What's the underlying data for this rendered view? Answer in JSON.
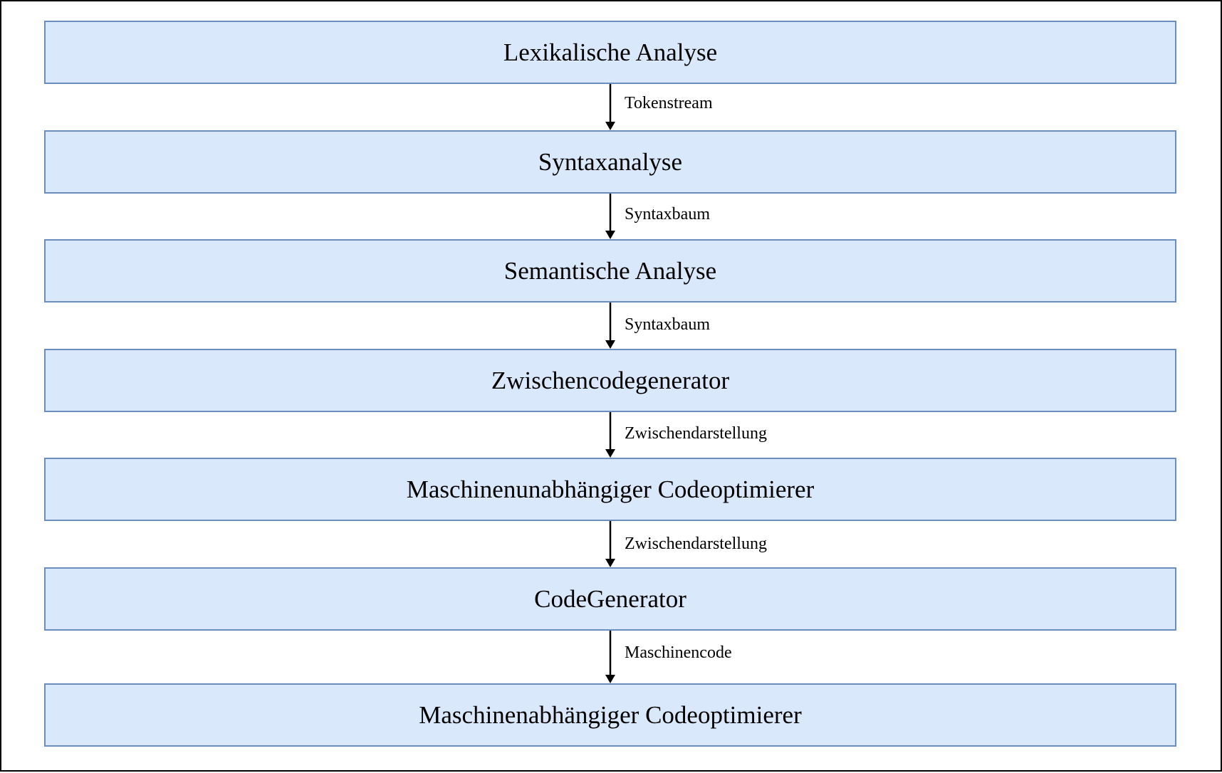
{
  "diagram": {
    "stages": [
      {
        "label": "Lexikalische Analyse"
      },
      {
        "label": "Syntaxanalyse"
      },
      {
        "label": "Semantische Analyse"
      },
      {
        "label": "Zwischencodegenerator"
      },
      {
        "label": "Maschinenunabhängiger Codeoptimierer"
      },
      {
        "label": "CodeGenerator"
      },
      {
        "label": "Maschinenabhängiger Codeoptimierer"
      }
    ],
    "edges": [
      {
        "label": "Tokenstream"
      },
      {
        "label": "Syntaxbaum"
      },
      {
        "label": "Syntaxbaum"
      },
      {
        "label": "Zwischendarstellung"
      },
      {
        "label": "Zwischendarstellung"
      },
      {
        "label": "Maschinencode"
      }
    ],
    "colors": {
      "box_fill": "#dae8fc",
      "box_border": "#6c8ebf",
      "arrow": "#000000",
      "frame_border": "#000000"
    }
  }
}
